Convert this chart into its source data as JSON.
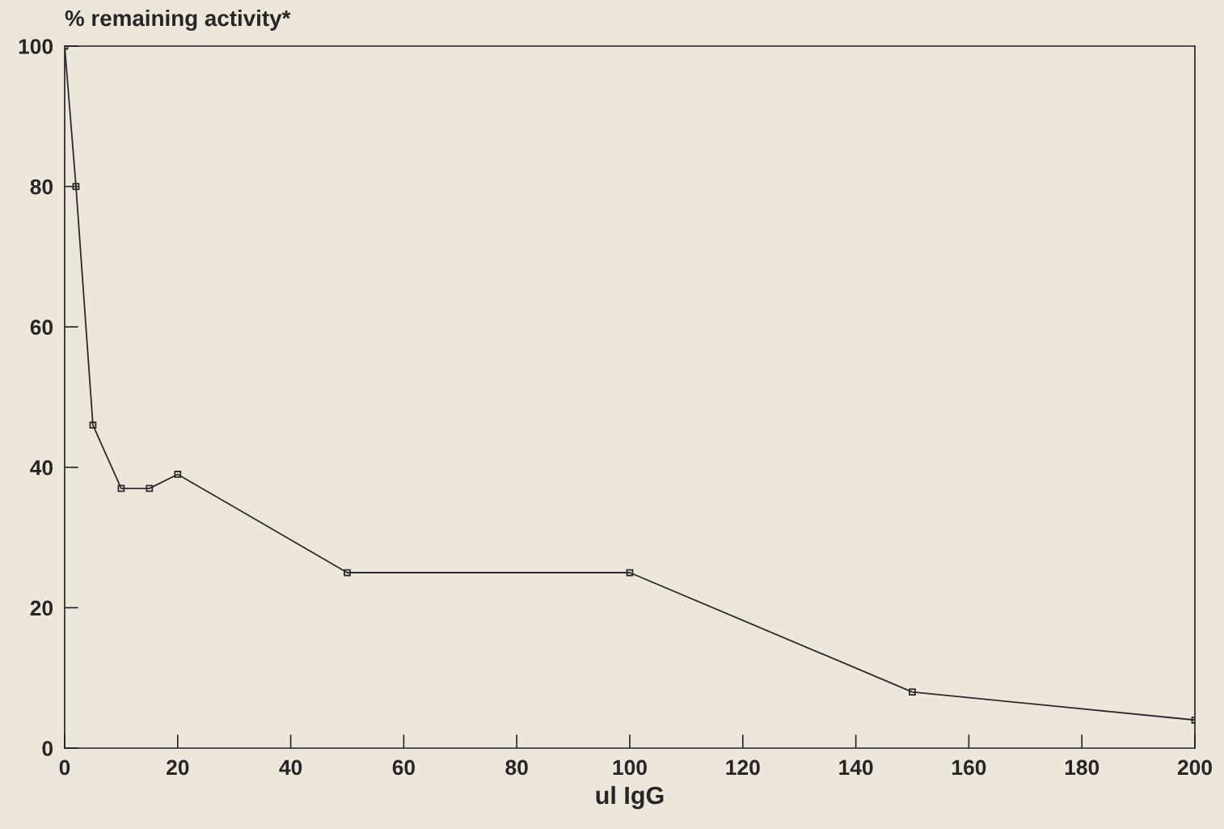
{
  "chart_data": {
    "type": "line",
    "ylabel": "% remaining activity*",
    "xlabel": "ul IgG",
    "x": [
      0,
      2,
      5,
      10,
      15,
      20,
      50,
      100,
      150,
      200
    ],
    "series": [
      {
        "color": "#2b2b2b",
        "values": [
          100,
          80,
          46,
          37,
          37,
          39,
          25,
          25,
          8,
          4
        ]
      }
    ],
    "xlim": [
      0,
      200
    ],
    "ylim": [
      0,
      100
    ],
    "xticks": [
      0,
      20,
      40,
      60,
      80,
      100,
      120,
      140,
      160,
      180,
      200
    ],
    "yticks": [
      0,
      20,
      40,
      60,
      80,
      100
    ],
    "marker": "square",
    "line_style": "solid",
    "grid": false,
    "legend": false
  }
}
